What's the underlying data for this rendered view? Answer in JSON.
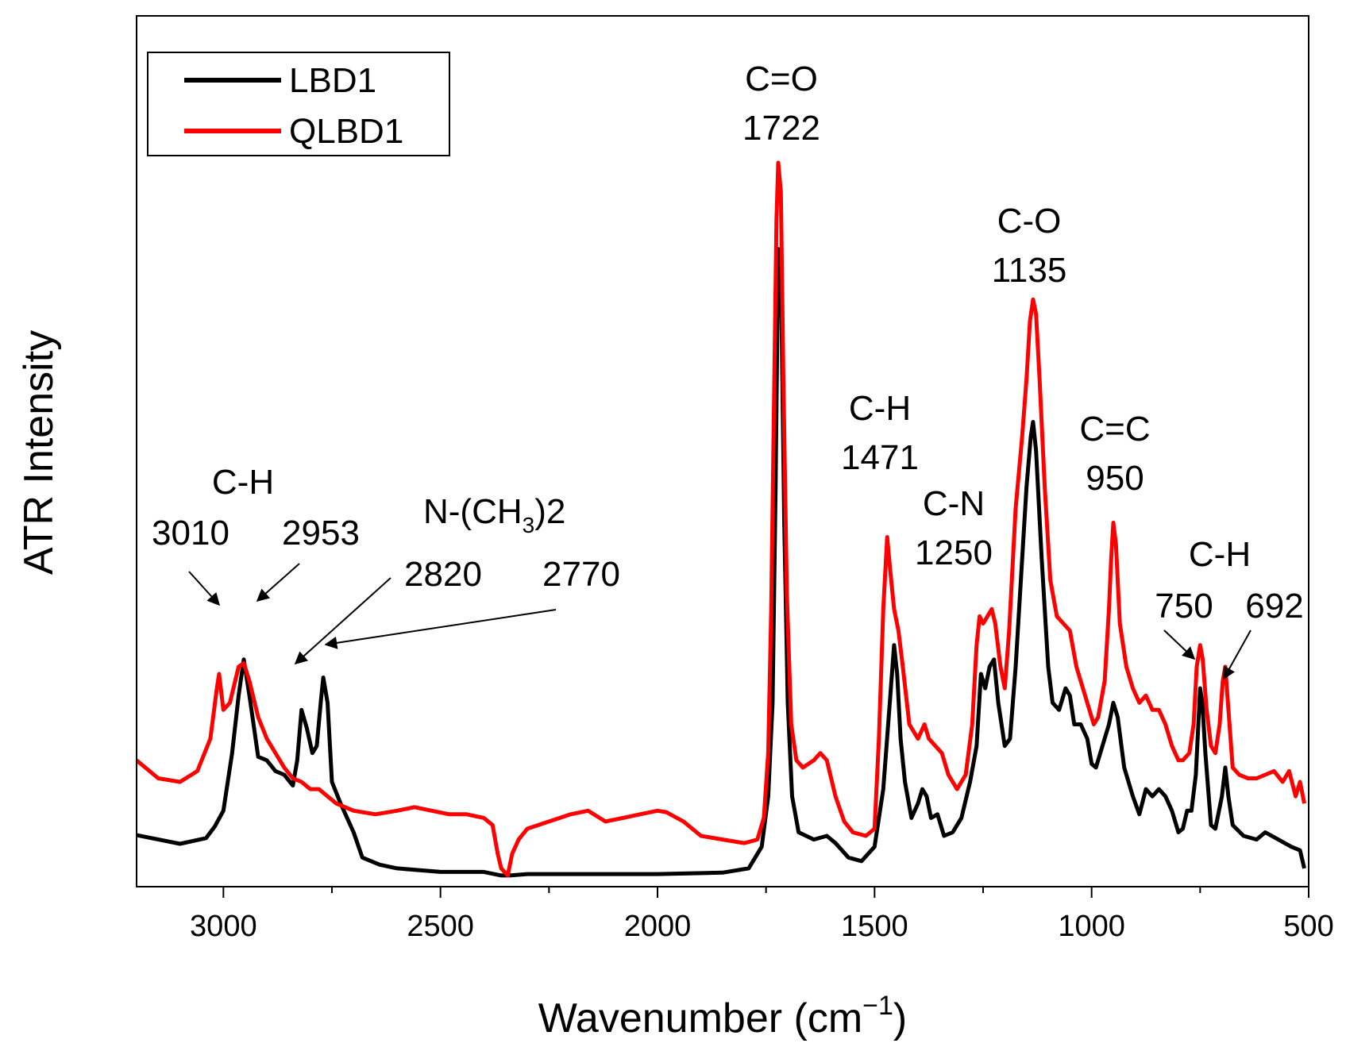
{
  "chart_data": {
    "type": "line",
    "xlabel": "Wavenumber (cm",
    "xlabel_sup": "−1",
    "xlabel_close": ")",
    "ylabel": "ATR Intensity",
    "xlim": [
      3200,
      500
    ],
    "x_reversed": true,
    "ylim": [
      0,
      1
    ],
    "y_ticks_shown": false,
    "grid": false,
    "legend": {
      "placement": "top-left",
      "entries": [
        "LBD1",
        "QLBD1"
      ]
    },
    "x_ticks": [
      "3000",
      "2500",
      "2000",
      "1500",
      "1000",
      "500"
    ],
    "x_tick_values": [
      3000,
      2500,
      2000,
      1500,
      1000,
      500
    ],
    "series": [
      {
        "name": "LBD1",
        "color": "#000000",
        "points": [
          [
            3200,
            0.066
          ],
          [
            3100,
            0.054
          ],
          [
            3040,
            0.062
          ],
          [
            3020,
            0.078
          ],
          [
            3000,
            0.1
          ],
          [
            2980,
            0.18
          ],
          [
            2965,
            0.26
          ],
          [
            2953,
            0.31
          ],
          [
            2940,
            0.26
          ],
          [
            2920,
            0.175
          ],
          [
            2900,
            0.17
          ],
          [
            2880,
            0.155
          ],
          [
            2860,
            0.15
          ],
          [
            2840,
            0.135
          ],
          [
            2830,
            0.17
          ],
          [
            2820,
            0.24
          ],
          [
            2808,
            0.215
          ],
          [
            2795,
            0.18
          ],
          [
            2785,
            0.19
          ],
          [
            2775,
            0.255
          ],
          [
            2770,
            0.285
          ],
          [
            2760,
            0.25
          ],
          [
            2750,
            0.14
          ],
          [
            2730,
            0.11
          ],
          [
            2700,
            0.07
          ],
          [
            2680,
            0.035
          ],
          [
            2640,
            0.025
          ],
          [
            2600,
            0.02
          ],
          [
            2500,
            0.015
          ],
          [
            2400,
            0.015
          ],
          [
            2360,
            0.01
          ],
          [
            2340,
            0.01
          ],
          [
            2300,
            0.012
          ],
          [
            2200,
            0.012
          ],
          [
            2000,
            0.012
          ],
          [
            1850,
            0.014
          ],
          [
            1790,
            0.02
          ],
          [
            1760,
            0.05
          ],
          [
            1745,
            0.12
          ],
          [
            1735,
            0.25
          ],
          [
            1728,
            0.55
          ],
          [
            1722,
            0.88
          ],
          [
            1716,
            0.86
          ],
          [
            1708,
            0.5
          ],
          [
            1700,
            0.25
          ],
          [
            1690,
            0.12
          ],
          [
            1675,
            0.07
          ],
          [
            1640,
            0.06
          ],
          [
            1610,
            0.065
          ],
          [
            1590,
            0.055
          ],
          [
            1560,
            0.035
          ],
          [
            1530,
            0.03
          ],
          [
            1500,
            0.05
          ],
          [
            1480,
            0.13
          ],
          [
            1465,
            0.25
          ],
          [
            1455,
            0.33
          ],
          [
            1448,
            0.29
          ],
          [
            1440,
            0.2
          ],
          [
            1430,
            0.14
          ],
          [
            1415,
            0.09
          ],
          [
            1400,
            0.11
          ],
          [
            1390,
            0.13
          ],
          [
            1380,
            0.12
          ],
          [
            1370,
            0.09
          ],
          [
            1355,
            0.095
          ],
          [
            1340,
            0.065
          ],
          [
            1320,
            0.07
          ],
          [
            1300,
            0.09
          ],
          [
            1280,
            0.14
          ],
          [
            1265,
            0.19
          ],
          [
            1255,
            0.29
          ],
          [
            1245,
            0.27
          ],
          [
            1235,
            0.3
          ],
          [
            1225,
            0.31
          ],
          [
            1215,
            0.25
          ],
          [
            1200,
            0.19
          ],
          [
            1188,
            0.2
          ],
          [
            1175,
            0.3
          ],
          [
            1160,
            0.45
          ],
          [
            1150,
            0.55
          ],
          [
            1140,
            0.62
          ],
          [
            1135,
            0.64
          ],
          [
            1128,
            0.6
          ],
          [
            1115,
            0.45
          ],
          [
            1100,
            0.3
          ],
          [
            1090,
            0.25
          ],
          [
            1075,
            0.24
          ],
          [
            1060,
            0.27
          ],
          [
            1050,
            0.26
          ],
          [
            1040,
            0.22
          ],
          [
            1025,
            0.22
          ],
          [
            1010,
            0.2
          ],
          [
            1000,
            0.165
          ],
          [
            990,
            0.16
          ],
          [
            975,
            0.19
          ],
          [
            960,
            0.22
          ],
          [
            950,
            0.25
          ],
          [
            940,
            0.23
          ],
          [
            925,
            0.16
          ],
          [
            905,
            0.12
          ],
          [
            890,
            0.095
          ],
          [
            875,
            0.13
          ],
          [
            860,
            0.12
          ],
          [
            845,
            0.13
          ],
          [
            830,
            0.12
          ],
          [
            815,
            0.1
          ],
          [
            800,
            0.07
          ],
          [
            790,
            0.075
          ],
          [
            780,
            0.1
          ],
          [
            770,
            0.1
          ],
          [
            760,
            0.15
          ],
          [
            750,
            0.27
          ],
          [
            745,
            0.25
          ],
          [
            738,
            0.18
          ],
          [
            725,
            0.08
          ],
          [
            715,
            0.075
          ],
          [
            700,
            0.12
          ],
          [
            692,
            0.16
          ],
          [
            685,
            0.12
          ],
          [
            675,
            0.08
          ],
          [
            650,
            0.065
          ],
          [
            620,
            0.06
          ],
          [
            600,
            0.07
          ],
          [
            570,
            0.06
          ],
          [
            540,
            0.05
          ],
          [
            520,
            0.045
          ],
          [
            510,
            0.02
          ]
        ]
      },
      {
        "name": "QLBD1",
        "color": "#ff0000",
        "points": [
          [
            3200,
            0.17
          ],
          [
            3150,
            0.145
          ],
          [
            3100,
            0.14
          ],
          [
            3060,
            0.155
          ],
          [
            3030,
            0.2
          ],
          [
            3015,
            0.27
          ],
          [
            3010,
            0.29
          ],
          [
            3000,
            0.24
          ],
          [
            2985,
            0.25
          ],
          [
            2965,
            0.3
          ],
          [
            2953,
            0.305
          ],
          [
            2940,
            0.28
          ],
          [
            2920,
            0.23
          ],
          [
            2900,
            0.2
          ],
          [
            2880,
            0.18
          ],
          [
            2860,
            0.16
          ],
          [
            2840,
            0.145
          ],
          [
            2820,
            0.14
          ],
          [
            2800,
            0.13
          ],
          [
            2780,
            0.13
          ],
          [
            2760,
            0.12
          ],
          [
            2740,
            0.11
          ],
          [
            2700,
            0.1
          ],
          [
            2650,
            0.095
          ],
          [
            2600,
            0.1
          ],
          [
            2560,
            0.105
          ],
          [
            2520,
            0.1
          ],
          [
            2480,
            0.095
          ],
          [
            2440,
            0.095
          ],
          [
            2400,
            0.09
          ],
          [
            2380,
            0.08
          ],
          [
            2368,
            0.04
          ],
          [
            2360,
            0.02
          ],
          [
            2345,
            0.01
          ],
          [
            2335,
            0.04
          ],
          [
            2320,
            0.06
          ],
          [
            2300,
            0.075
          ],
          [
            2250,
            0.085
          ],
          [
            2200,
            0.095
          ],
          [
            2160,
            0.1
          ],
          [
            2120,
            0.085
          ],
          [
            2080,
            0.09
          ],
          [
            2040,
            0.095
          ],
          [
            2000,
            0.1
          ],
          [
            1980,
            0.098
          ],
          [
            1940,
            0.085
          ],
          [
            1900,
            0.065
          ],
          [
            1850,
            0.06
          ],
          [
            1800,
            0.055
          ],
          [
            1770,
            0.06
          ],
          [
            1755,
            0.09
          ],
          [
            1745,
            0.18
          ],
          [
            1738,
            0.38
          ],
          [
            1732,
            0.65
          ],
          [
            1726,
            0.92
          ],
          [
            1722,
            1.0
          ],
          [
            1716,
            0.96
          ],
          [
            1710,
            0.7
          ],
          [
            1702,
            0.4
          ],
          [
            1692,
            0.22
          ],
          [
            1680,
            0.17
          ],
          [
            1665,
            0.16
          ],
          [
            1640,
            0.17
          ],
          [
            1625,
            0.18
          ],
          [
            1610,
            0.17
          ],
          [
            1590,
            0.12
          ],
          [
            1570,
            0.085
          ],
          [
            1550,
            0.07
          ],
          [
            1520,
            0.065
          ],
          [
            1500,
            0.075
          ],
          [
            1490,
            0.2
          ],
          [
            1480,
            0.38
          ],
          [
            1471,
            0.48
          ],
          [
            1465,
            0.44
          ],
          [
            1455,
            0.38
          ],
          [
            1445,
            0.35
          ],
          [
            1435,
            0.3
          ],
          [
            1420,
            0.22
          ],
          [
            1400,
            0.2
          ],
          [
            1385,
            0.22
          ],
          [
            1375,
            0.2
          ],
          [
            1360,
            0.19
          ],
          [
            1345,
            0.18
          ],
          [
            1330,
            0.15
          ],
          [
            1310,
            0.13
          ],
          [
            1290,
            0.15
          ],
          [
            1275,
            0.22
          ],
          [
            1265,
            0.33
          ],
          [
            1258,
            0.37
          ],
          [
            1250,
            0.36
          ],
          [
            1240,
            0.37
          ],
          [
            1230,
            0.38
          ],
          [
            1222,
            0.36
          ],
          [
            1210,
            0.3
          ],
          [
            1200,
            0.27
          ],
          [
            1190,
            0.35
          ],
          [
            1175,
            0.52
          ],
          [
            1160,
            0.62
          ],
          [
            1150,
            0.7
          ],
          [
            1142,
            0.78
          ],
          [
            1135,
            0.81
          ],
          [
            1128,
            0.79
          ],
          [
            1120,
            0.7
          ],
          [
            1108,
            0.55
          ],
          [
            1095,
            0.42
          ],
          [
            1080,
            0.37
          ],
          [
            1065,
            0.36
          ],
          [
            1050,
            0.35
          ],
          [
            1035,
            0.3
          ],
          [
            1020,
            0.27
          ],
          [
            1005,
            0.24
          ],
          [
            995,
            0.22
          ],
          [
            985,
            0.23
          ],
          [
            970,
            0.28
          ],
          [
            960,
            0.38
          ],
          [
            955,
            0.45
          ],
          [
            950,
            0.5
          ],
          [
            944,
            0.47
          ],
          [
            935,
            0.36
          ],
          [
            920,
            0.3
          ],
          [
            905,
            0.27
          ],
          [
            890,
            0.25
          ],
          [
            875,
            0.26
          ],
          [
            860,
            0.24
          ],
          [
            845,
            0.24
          ],
          [
            830,
            0.22
          ],
          [
            815,
            0.19
          ],
          [
            800,
            0.17
          ],
          [
            790,
            0.17
          ],
          [
            775,
            0.18
          ],
          [
            765,
            0.22
          ],
          [
            758,
            0.3
          ],
          [
            750,
            0.33
          ],
          [
            744,
            0.31
          ],
          [
            735,
            0.24
          ],
          [
            725,
            0.19
          ],
          [
            715,
            0.18
          ],
          [
            705,
            0.22
          ],
          [
            698,
            0.28
          ],
          [
            692,
            0.3
          ],
          [
            686,
            0.25
          ],
          [
            675,
            0.16
          ],
          [
            660,
            0.15
          ],
          [
            640,
            0.145
          ],
          [
            620,
            0.145
          ],
          [
            600,
            0.15
          ],
          [
            580,
            0.155
          ],
          [
            560,
            0.14
          ],
          [
            545,
            0.155
          ],
          [
            530,
            0.12
          ],
          [
            520,
            0.14
          ],
          [
            510,
            0.11
          ]
        ]
      }
    ],
    "annotations": [
      {
        "label": "C=O",
        "value": "1722"
      },
      {
        "label": "C-O",
        "value": "1135"
      },
      {
        "label": "C-H",
        "value": "1471"
      },
      {
        "label": "C-N",
        "value": "1250"
      },
      {
        "label": "C=C",
        "value": "950"
      },
      {
        "label": "C-H",
        "value": "750",
        "value2": "692"
      },
      {
        "label": "C-H",
        "value": "3010",
        "value2": "2953"
      },
      {
        "label": "N-(CH",
        "sub": "3",
        "label_end": ")2",
        "value": "2820",
        "value2": "2770"
      }
    ]
  }
}
